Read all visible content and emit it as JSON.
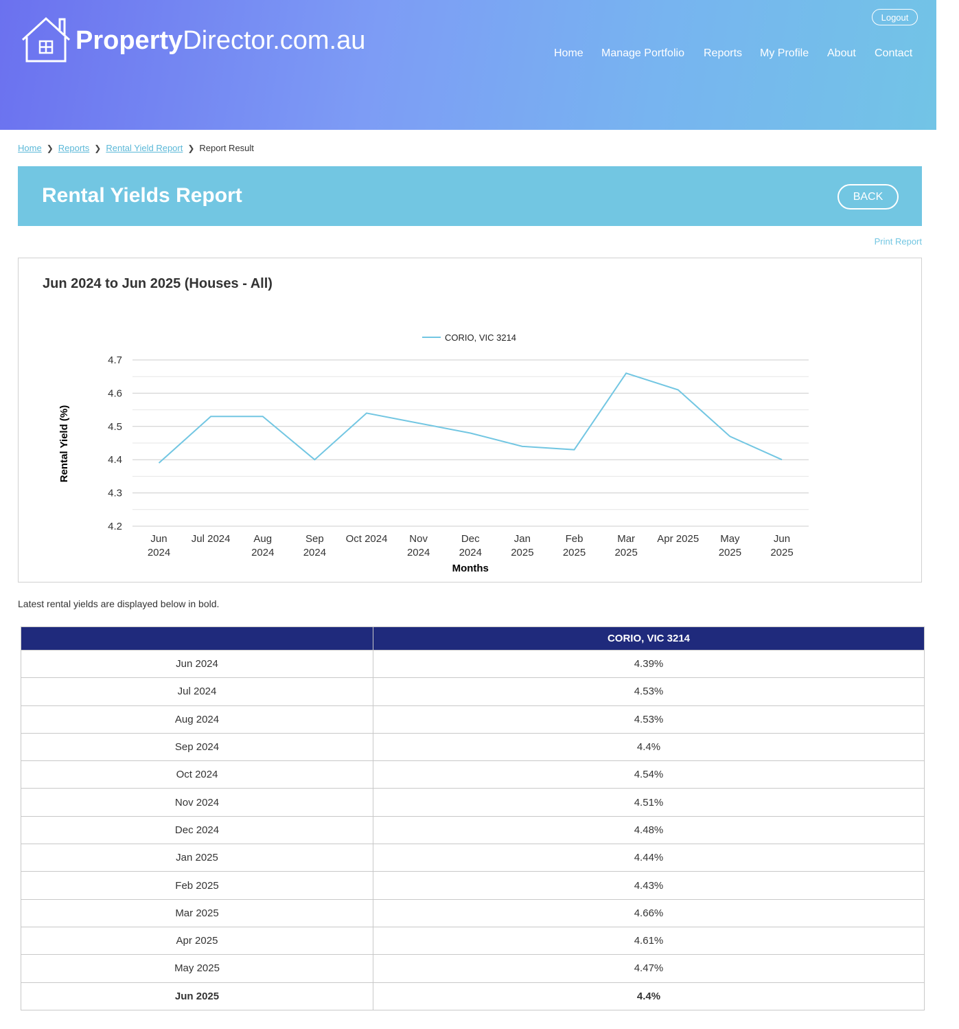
{
  "brand": {
    "name_bold": "Property",
    "name_light": "Director.com.au"
  },
  "header": {
    "logout": "Logout"
  },
  "nav": [
    "Home",
    "Manage Portfolio",
    "Reports",
    "My Profile",
    "About",
    "Contact"
  ],
  "breadcrumb": {
    "items": [
      "Home",
      "Reports",
      "Rental Yield Report"
    ],
    "current": "Report Result"
  },
  "page": {
    "title": "Rental Yields Report",
    "back": "BACK",
    "print": "Print Report"
  },
  "chart": {
    "title": "Jun 2024 to Jun 2025 (Houses - All)"
  },
  "chart_data": {
    "type": "line",
    "categories": [
      [
        "Jun",
        "2024"
      ],
      [
        "Jul 2024"
      ],
      [
        "Aug",
        "2024"
      ],
      [
        "Sep",
        "2024"
      ],
      [
        "Oct 2024"
      ],
      [
        "Nov",
        "2024"
      ],
      [
        "Dec",
        "2024"
      ],
      [
        "Jan",
        "2025"
      ],
      [
        "Feb",
        "2025"
      ],
      [
        "Mar",
        "2025"
      ],
      [
        "Apr 2025"
      ],
      [
        "May",
        "2025"
      ],
      [
        "Jun",
        "2025"
      ]
    ],
    "series": [
      {
        "name": "CORIO, VIC 3214",
        "values": [
          4.39,
          4.53,
          4.53,
          4.4,
          4.54,
          4.51,
          4.48,
          4.44,
          4.43,
          4.66,
          4.61,
          4.47,
          4.4
        ],
        "color": "#72c6e2"
      }
    ],
    "xlabel": "Months",
    "ylabel": "Rental Yield (%)",
    "ylim": [
      4.2,
      4.7
    ],
    "yticks": [
      "4.7",
      "4.6",
      "4.5",
      "4.4",
      "4.3",
      "4.2"
    ],
    "legend_position": "top-center",
    "grid": true
  },
  "note": "Latest rental yields are displayed below in bold.",
  "table": {
    "header": [
      "",
      "CORIO, VIC 3214"
    ],
    "rows": [
      [
        "Jun 2024",
        "4.39%"
      ],
      [
        "Jul 2024",
        "4.53%"
      ],
      [
        "Aug 2024",
        "4.53%"
      ],
      [
        "Sep 2024",
        "4.4%"
      ],
      [
        "Oct 2024",
        "4.54%"
      ],
      [
        "Nov 2024",
        "4.51%"
      ],
      [
        "Dec 2024",
        "4.48%"
      ],
      [
        "Jan 2025",
        "4.44%"
      ],
      [
        "Feb 2025",
        "4.43%"
      ],
      [
        "Mar 2025",
        "4.66%"
      ],
      [
        "Apr 2025",
        "4.61%"
      ],
      [
        "May 2025",
        "4.47%"
      ],
      [
        "Jun 2025",
        "4.4%"
      ]
    ]
  }
}
